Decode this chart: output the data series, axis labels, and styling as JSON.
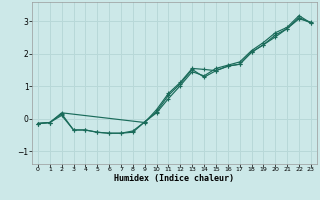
{
  "title": "",
  "xlabel": "Humidex (Indice chaleur)",
  "bg_color": "#cce8e8",
  "grid_color": "#b8d8d8",
  "line_color": "#1a6b5a",
  "xlim": [
    -0.5,
    23.5
  ],
  "ylim": [
    -1.4,
    3.6
  ],
  "xticks": [
    0,
    1,
    2,
    3,
    4,
    5,
    6,
    7,
    8,
    9,
    10,
    11,
    12,
    13,
    14,
    15,
    16,
    17,
    18,
    19,
    20,
    21,
    22,
    23
  ],
  "yticks": [
    -1,
    0,
    1,
    2,
    3
  ],
  "line1_x": [
    0,
    1,
    2,
    3,
    4,
    5,
    6,
    7,
    8,
    9,
    10,
    11,
    12,
    13,
    14,
    15,
    16,
    17,
    18,
    19,
    20,
    21,
    22,
    23
  ],
  "line1_y": [
    -0.15,
    -0.12,
    0.15,
    -0.35,
    -0.35,
    -0.42,
    -0.45,
    -0.45,
    -0.42,
    -0.1,
    0.22,
    0.72,
    1.08,
    1.52,
    1.28,
    1.48,
    1.62,
    1.68,
    2.05,
    2.28,
    2.58,
    2.78,
    3.12,
    2.95
  ],
  "line2_x": [
    0,
    1,
    2,
    9,
    10,
    11,
    12,
    13,
    14,
    15,
    16,
    17,
    18,
    19,
    20,
    21,
    22,
    23
  ],
  "line2_y": [
    -0.15,
    -0.12,
    0.18,
    -0.12,
    0.28,
    0.78,
    1.12,
    1.55,
    1.52,
    1.48,
    1.62,
    1.68,
    2.05,
    2.28,
    2.52,
    2.78,
    3.08,
    2.98
  ],
  "line3_x": [
    0,
    1,
    2,
    3,
    4,
    5,
    6,
    7,
    8,
    9,
    10,
    11,
    12,
    13,
    14,
    15,
    16,
    17,
    18,
    19,
    20,
    21,
    22,
    23
  ],
  "line3_y": [
    -0.15,
    -0.12,
    0.1,
    -0.35,
    -0.35,
    -0.42,
    -0.45,
    -0.45,
    -0.38,
    -0.1,
    0.18,
    0.62,
    1.02,
    1.45,
    1.32,
    1.55,
    1.65,
    1.75,
    2.1,
    2.35,
    2.65,
    2.82,
    3.18,
    2.95
  ]
}
